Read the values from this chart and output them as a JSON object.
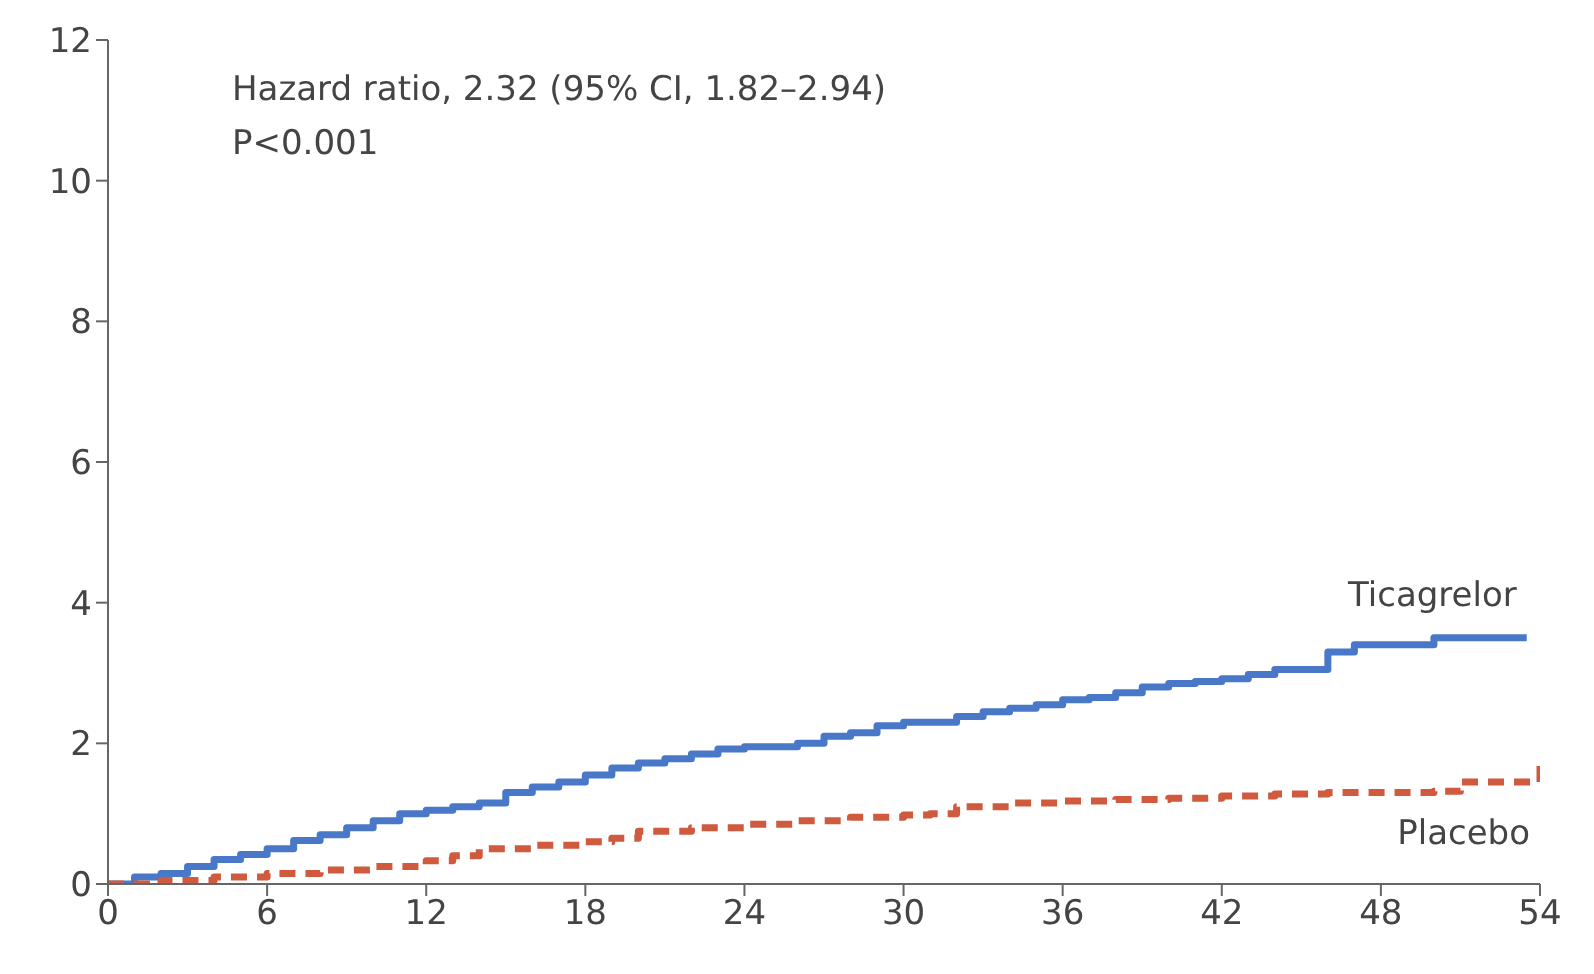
{
  "chart_data": {
    "type": "step",
    "annotations": [
      "Hazard ratio, 2.32 (95% CI, 1.82–2.94)",
      "P<0.001"
    ],
    "series": [
      {
        "name": "Ticagrelor",
        "color": "#4a78c8",
        "line_style": "solid",
        "x": [
          0,
          1,
          2,
          3,
          4,
          5,
          6,
          7,
          8,
          9,
          10,
          11,
          12,
          13,
          14,
          15,
          16,
          17,
          18,
          19,
          20,
          21,
          22,
          23,
          24,
          26,
          27,
          28,
          29,
          30,
          32,
          33,
          34,
          35,
          36,
          37,
          38,
          39,
          40,
          41,
          42,
          43,
          44,
          45,
          46,
          47,
          48,
          49,
          50,
          53.5
        ],
        "values": [
          0,
          0.1,
          0.15,
          0.25,
          0.35,
          0.42,
          0.5,
          0.62,
          0.7,
          0.8,
          0.9,
          1.0,
          1.05,
          1.1,
          1.15,
          1.3,
          1.38,
          1.45,
          1.55,
          1.65,
          1.72,
          1.78,
          1.85,
          1.92,
          1.95,
          2.0,
          2.1,
          2.15,
          2.25,
          2.3,
          2.38,
          2.45,
          2.5,
          2.55,
          2.62,
          2.65,
          2.72,
          2.8,
          2.85,
          2.88,
          2.92,
          2.98,
          3.05,
          3.05,
          3.3,
          3.4,
          3.4,
          3.4,
          3.5,
          3.5
        ]
      },
      {
        "name": "Placebo",
        "color": "#d05a3e",
        "line_style": "dashed",
        "x": [
          0,
          2,
          4,
          6,
          8,
          10,
          12,
          13,
          14,
          16,
          18,
          19,
          20,
          22,
          24,
          26,
          28,
          30,
          31,
          32,
          34,
          36,
          38,
          40,
          42,
          44,
          46,
          48,
          50,
          51,
          53,
          54
        ],
        "values": [
          0,
          0.05,
          0.1,
          0.15,
          0.2,
          0.25,
          0.33,
          0.4,
          0.5,
          0.55,
          0.6,
          0.65,
          0.75,
          0.8,
          0.85,
          0.9,
          0.95,
          0.98,
          1.0,
          1.1,
          1.15,
          1.18,
          1.2,
          1.22,
          1.25,
          1.28,
          1.3,
          1.3,
          1.32,
          1.45,
          1.45,
          1.7
        ]
      }
    ],
    "xlim": [
      0,
      54
    ],
    "xticks": [
      0,
      6,
      12,
      18,
      24,
      30,
      36,
      42,
      48,
      54
    ],
    "ylim": [
      0,
      12
    ],
    "yticks": [
      0,
      2,
      4,
      6,
      8,
      10,
      12
    ],
    "grid": false,
    "legend": false,
    "marker": "none"
  }
}
